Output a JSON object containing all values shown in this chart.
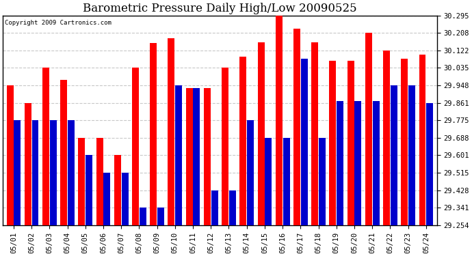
{
  "title": "Barometric Pressure Daily High/Low 20090525",
  "copyright": "Copyright 2009 Cartronics.com",
  "dates": [
    "05/01",
    "05/02",
    "05/03",
    "05/04",
    "05/05",
    "05/06",
    "05/07",
    "05/08",
    "05/09",
    "05/10",
    "05/11",
    "05/12",
    "05/13",
    "05/14",
    "05/15",
    "05/16",
    "05/17",
    "05/18",
    "05/19",
    "05/20",
    "05/21",
    "05/22",
    "05/23",
    "05/24"
  ],
  "highs": [
    29.948,
    29.861,
    30.035,
    29.975,
    29.688,
    29.688,
    29.601,
    30.035,
    30.16,
    30.183,
    29.935,
    29.935,
    30.035,
    30.09,
    30.163,
    30.295,
    30.23,
    30.163,
    30.07,
    30.07,
    30.208,
    30.12,
    30.08,
    30.1
  ],
  "lows": [
    29.775,
    29.775,
    29.775,
    29.775,
    29.601,
    29.515,
    29.515,
    29.341,
    29.341,
    29.948,
    29.935,
    29.428,
    29.428,
    29.775,
    29.688,
    29.688,
    30.08,
    29.688,
    29.87,
    29.87,
    29.87,
    29.948,
    29.948,
    29.861
  ],
  "yticks": [
    29.254,
    29.341,
    29.428,
    29.515,
    29.601,
    29.688,
    29.775,
    29.861,
    29.948,
    30.035,
    30.122,
    30.208,
    30.295
  ],
  "ymin": 29.254,
  "ymax": 30.295,
  "bar_color_high": "#FF0000",
  "bar_color_low": "#0000CC",
  "bg_color": "#FFFFFF",
  "plot_bg_color": "#FFFFFF",
  "grid_color": "#C8C8C8",
  "title_fontsize": 12,
  "tick_fontsize": 7.5
}
